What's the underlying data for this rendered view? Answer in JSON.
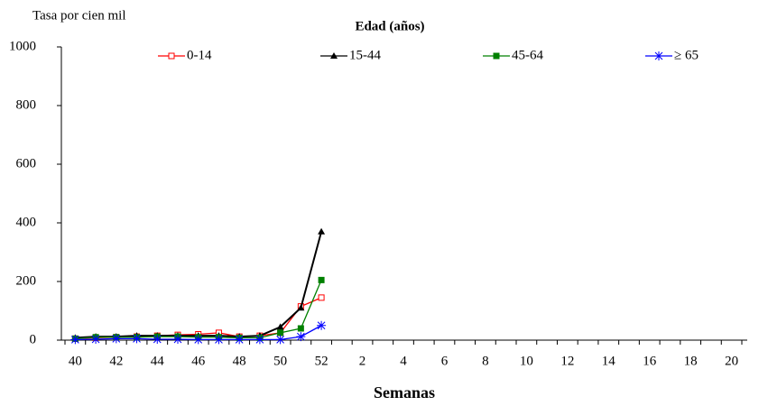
{
  "chart_data": {
    "type": "line",
    "y_label": "Tasa por cien mil",
    "x_label": "Semanas",
    "legend_title": "Edad (años)",
    "legend_position": "top",
    "categories": [
      40,
      null,
      42,
      null,
      44,
      null,
      46,
      null,
      48,
      null,
      50,
      null,
      52,
      null,
      2,
      null,
      4,
      null,
      6,
      null,
      8,
      null,
      10,
      null,
      12,
      null,
      14,
      null,
      16,
      null,
      18,
      null,
      20
    ],
    "ylim": [
      0,
      1000
    ],
    "yticks": [
      0,
      200,
      400,
      600,
      800,
      1000
    ],
    "series": [
      {
        "name": "0-14",
        "color": "#ff0000",
        "marker": "square-open",
        "values": [
          5,
          8,
          10,
          12,
          15,
          18,
          20,
          25,
          12,
          15,
          25,
          115,
          145,
          null,
          null,
          null,
          null,
          null,
          null,
          null,
          null,
          null,
          null,
          null,
          null,
          null,
          null,
          null,
          null,
          null,
          null,
          null,
          null
        ]
      },
      {
        "name": "15-44",
        "color": "#000000",
        "marker": "triangle",
        "values": [
          8,
          12,
          12,
          15,
          15,
          15,
          15,
          15,
          12,
          15,
          45,
          110,
          370,
          null,
          null,
          null,
          null,
          null,
          null,
          null,
          null,
          null,
          null,
          null,
          null,
          null,
          null,
          null,
          null,
          null,
          null,
          null,
          null
        ]
      },
      {
        "name": "45-64",
        "color": "#008000",
        "marker": "square",
        "values": [
          5,
          10,
          10,
          10,
          12,
          12,
          10,
          10,
          8,
          8,
          25,
          40,
          205,
          null,
          null,
          null,
          null,
          null,
          null,
          null,
          null,
          null,
          null,
          null,
          null,
          null,
          null,
          null,
          null,
          null,
          null,
          null,
          null
        ]
      },
      {
        "name": "≥ 65",
        "color": "#0000ff",
        "marker": "star",
        "values": [
          2,
          3,
          5,
          5,
          3,
          3,
          2,
          2,
          2,
          2,
          2,
          12,
          50,
          null,
          null,
          null,
          null,
          null,
          null,
          null,
          null,
          null,
          null,
          null,
          null,
          null,
          null,
          null,
          null,
          null,
          null,
          null,
          null
        ]
      }
    ]
  }
}
